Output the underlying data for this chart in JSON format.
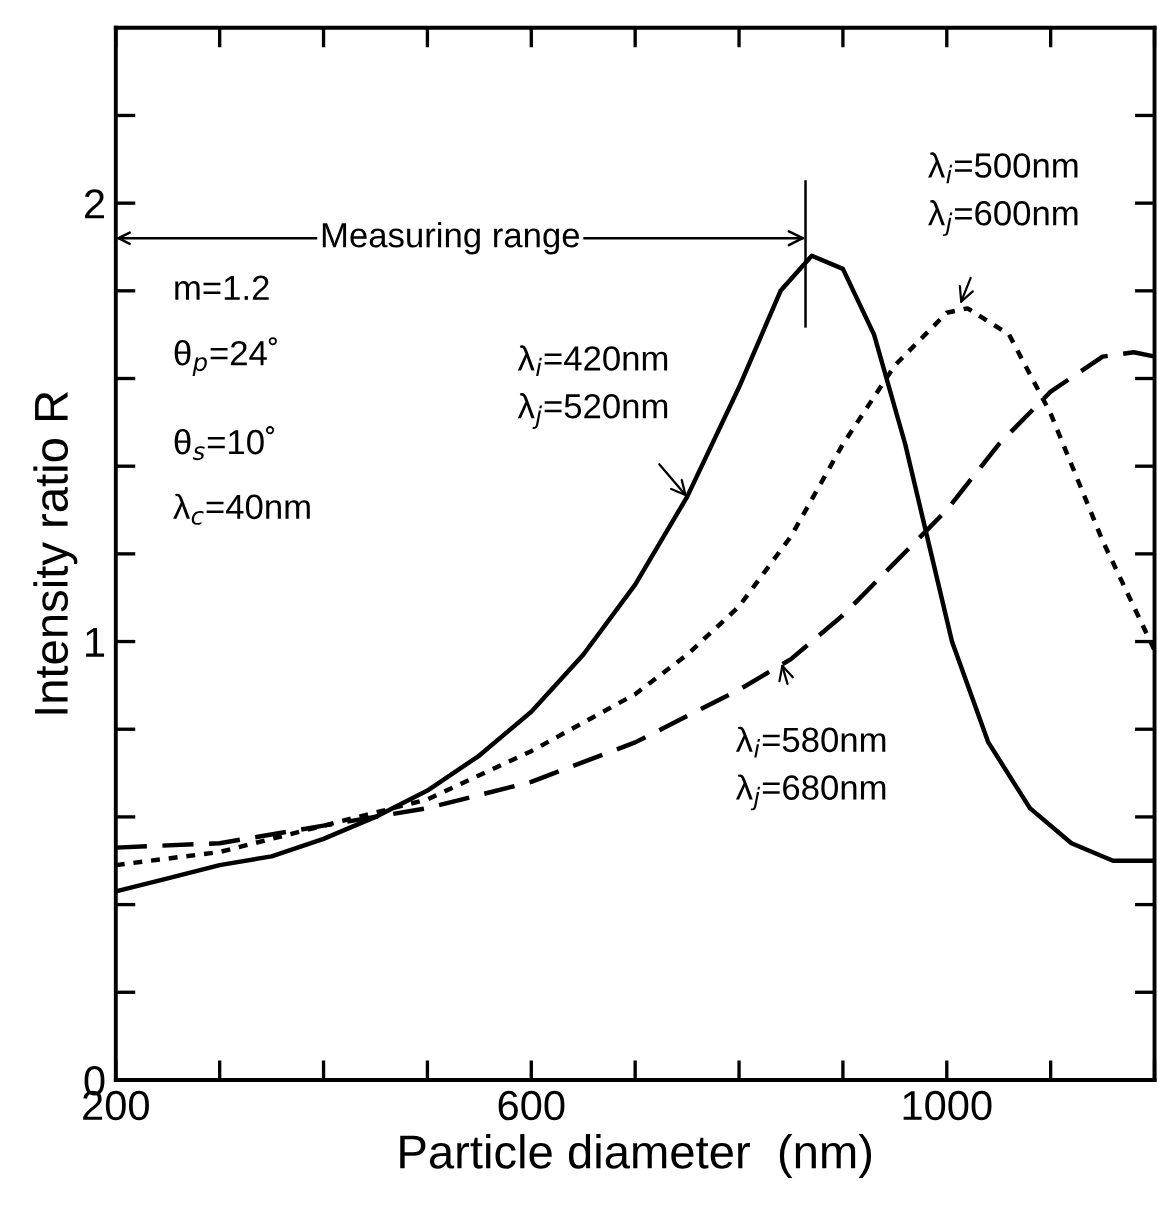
{
  "chart_data": {
    "type": "line",
    "xlabel": "Particle diameter  (nm)",
    "ylabel": "Intensity ratio R",
    "xlim": [
      200,
      1200
    ],
    "ylim": [
      0,
      2.4
    ],
    "xticks": [
      200,
      {
        "value": 300,
        "label": null
      },
      {
        "value": 400,
        "label": null
      },
      {
        "value": 500,
        "label": null
      },
      600,
      {
        "value": 700,
        "label": null
      },
      {
        "value": 800,
        "label": null
      },
      {
        "value": 900,
        "label": null
      },
      1000,
      {
        "value": 1100,
        "label": null
      },
      {
        "value": 1200,
        "label": null
      }
    ],
    "yticks": [
      0,
      {
        "value": 0.2,
        "label": null
      },
      {
        "value": 0.4,
        "label": null
      },
      {
        "value": 0.6,
        "label": null
      },
      {
        "value": 0.8,
        "label": null
      },
      1,
      {
        "value": 1.2,
        "label": null
      },
      {
        "value": 1.4,
        "label": null
      },
      {
        "value": 1.6,
        "label": null
      },
      {
        "value": 1.8,
        "label": null
      },
      2,
      {
        "value": 2.2,
        "label": null
      }
    ],
    "grid": false,
    "legend": false,
    "marker": "none",
    "ref_lines": [
      {
        "axis": "x",
        "value": 864,
        "label": null
      }
    ],
    "series": [
      {
        "color": "#000000",
        "line_style": "solid",
        "x": [
          200,
          250,
          300,
          350,
          400,
          450,
          500,
          550,
          600,
          650,
          700,
          750,
          800,
          840,
          870,
          900,
          930,
          960,
          985,
          1005,
          1040,
          1080,
          1120,
          1160,
          1200
        ],
        "values": [
          0.43,
          0.46,
          0.49,
          0.51,
          0.55,
          0.6,
          0.66,
          0.74,
          0.84,
          0.97,
          1.13,
          1.33,
          1.58,
          1.8,
          1.88,
          1.85,
          1.7,
          1.45,
          1.2,
          1.0,
          0.77,
          0.62,
          0.54,
          0.5,
          0.5
        ]
      },
      {
        "color": "#000000",
        "line_style": "dotted",
        "x": [
          200,
          300,
          400,
          500,
          600,
          700,
          750,
          800,
          850,
          900,
          950,
          1000,
          1020,
          1060,
          1100,
          1150,
          1200
        ],
        "values": [
          0.49,
          0.52,
          0.58,
          0.64,
          0.75,
          0.88,
          0.97,
          1.08,
          1.24,
          1.45,
          1.63,
          1.75,
          1.76,
          1.7,
          1.52,
          1.23,
          0.98
        ]
      },
      {
        "color": "#000000",
        "line_style": "dashed",
        "x": [
          200,
          300,
          400,
          500,
          600,
          700,
          800,
          850,
          900,
          950,
          1000,
          1050,
          1100,
          1150,
          1180,
          1200
        ],
        "values": [
          0.53,
          0.54,
          0.58,
          0.62,
          0.68,
          0.77,
          0.89,
          0.96,
          1.06,
          1.18,
          1.3,
          1.45,
          1.57,
          1.65,
          1.66,
          1.65
        ]
      }
    ],
    "annotations": [
      {
        "text": "Measuring range",
        "x": 864,
        "y": 1.92
      },
      "m=1.2",
      "θ$_{p}$=24˚",
      "θ$_{s}$=10˚",
      "λ$_{c}$=40nm",
      {
        "text": "λ$_{i}$=420nm\nλ$_{j}$=520nm",
        "x": 750,
        "y": 1.33
      },
      {
        "text": "λ$_{i}$=500nm\nλ$_{j}$=600nm",
        "x": 1013,
        "y": 1.77
      },
      {
        "text": "λ$_{i}$=580nm\nλ$_{j}$=680nm",
        "x": 841,
        "y": 0.95
      }
    ]
  }
}
